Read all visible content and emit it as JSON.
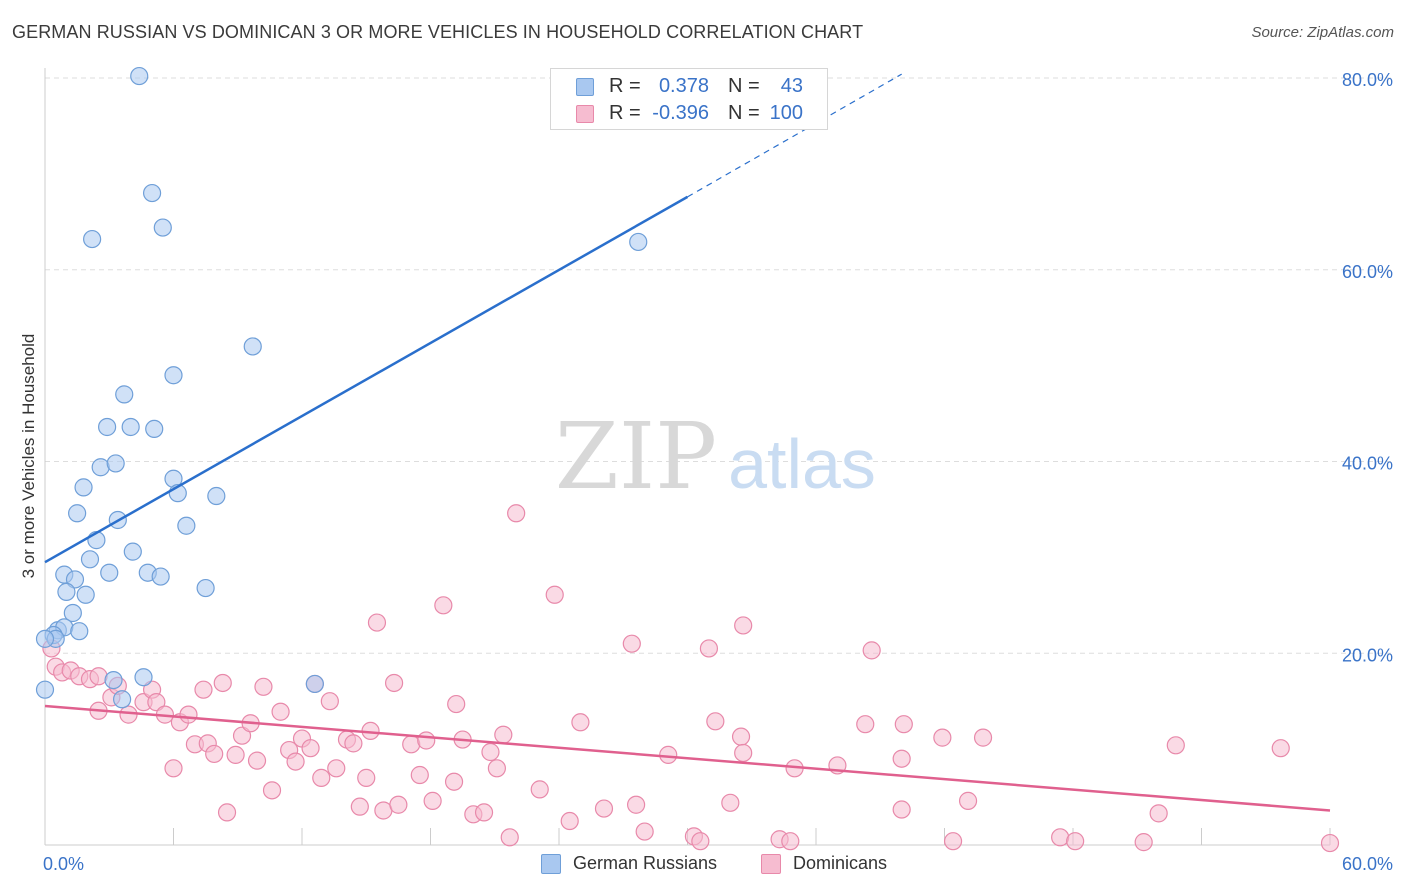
{
  "title": "GERMAN RUSSIAN VS DOMINICAN 3 OR MORE VEHICLES IN HOUSEHOLD CORRELATION CHART",
  "source": "Source: ZipAtlas.com",
  "watermark": {
    "zip": "ZIP",
    "atlas": "atlas"
  },
  "legend_top": [
    {
      "r_label": "R =",
      "r_value": "0.378",
      "n_label": "N =",
      "n_value": "43"
    },
    {
      "r_label": "R =",
      "r_value": "-0.396",
      "n_label": "N =",
      "n_value": "100"
    }
  ],
  "legend_bottom": [
    {
      "label": "German Russians"
    },
    {
      "label": "Dominicans"
    }
  ],
  "colors": {
    "blue_fill": "#a9c8f0",
    "blue_stroke": "#6f9fd8",
    "blue_line": "#2a6fcc",
    "pink_fill": "#f6bcd0",
    "pink_stroke": "#e889aa",
    "pink_line": "#e0608e",
    "axis_label": "#3a73c8",
    "grid": "#dddddd"
  },
  "chart_data": {
    "type": "scatter",
    "title": "GERMAN RUSSIAN VS DOMINICAN 3 OR MORE VEHICLES IN HOUSEHOLD CORRELATION CHART",
    "xlabel": "",
    "ylabel": "3 or more Vehicles in Household",
    "xlim": [
      0,
      60
    ],
    "ylim": [
      0,
      80
    ],
    "x_tick_labels": [
      "0.0%",
      "60.0%"
    ],
    "y_ticks": [
      20,
      40,
      60,
      80
    ],
    "y_tick_labels": [
      "20.0%",
      "40.0%",
      "60.0%",
      "80.0%"
    ],
    "grid": true,
    "legend_position": "top-center",
    "series": [
      {
        "name": "German Russians",
        "color": "#6f9fd8",
        "r": 0.378,
        "n": 43,
        "trend": {
          "x1": 0,
          "y1": 29.5,
          "x2": 30,
          "y2": 67.6,
          "dash_to_x": 40,
          "dash_to_y": 80.4
        },
        "points": [
          [
            4.4,
            80.2
          ],
          [
            5.0,
            68.0
          ],
          [
            2.2,
            63.2
          ],
          [
            5.5,
            64.4
          ],
          [
            27.7,
            62.9
          ],
          [
            9.7,
            52.0
          ],
          [
            6.0,
            49.0
          ],
          [
            3.7,
            47.0
          ],
          [
            2.9,
            43.6
          ],
          [
            4.0,
            43.6
          ],
          [
            5.1,
            43.4
          ],
          [
            2.6,
            39.4
          ],
          [
            3.3,
            39.8
          ],
          [
            1.8,
            37.3
          ],
          [
            6.0,
            38.2
          ],
          [
            6.2,
            36.7
          ],
          [
            8.0,
            36.4
          ],
          [
            1.5,
            34.6
          ],
          [
            3.4,
            33.9
          ],
          [
            6.6,
            33.3
          ],
          [
            2.4,
            31.8
          ],
          [
            4.1,
            30.6
          ],
          [
            2.1,
            29.8
          ],
          [
            0.9,
            28.2
          ],
          [
            1.4,
            27.7
          ],
          [
            3.0,
            28.4
          ],
          [
            4.8,
            28.4
          ],
          [
            5.4,
            28.0
          ],
          [
            7.5,
            26.8
          ],
          [
            1.0,
            26.4
          ],
          [
            1.9,
            26.1
          ],
          [
            1.3,
            24.2
          ],
          [
            0.6,
            22.4
          ],
          [
            0.9,
            22.7
          ],
          [
            1.6,
            22.3
          ],
          [
            0.4,
            21.9
          ],
          [
            0.5,
            21.5
          ],
          [
            3.2,
            17.2
          ],
          [
            4.6,
            17.5
          ],
          [
            12.6,
            16.8
          ],
          [
            3.6,
            15.2
          ],
          [
            0.0,
            16.2
          ],
          [
            0.0,
            21.5
          ]
        ]
      },
      {
        "name": "Dominicans",
        "color": "#e889aa",
        "r": -0.396,
        "n": 100,
        "trend": {
          "x1": 0,
          "y1": 14.5,
          "x2": 60,
          "y2": 3.6
        },
        "points": [
          [
            0.3,
            20.5
          ],
          [
            0.5,
            18.6
          ],
          [
            0.8,
            18.0
          ],
          [
            1.2,
            18.2
          ],
          [
            1.6,
            17.6
          ],
          [
            2.1,
            17.3
          ],
          [
            2.5,
            17.6
          ],
          [
            3.1,
            15.4
          ],
          [
            2.5,
            14.0
          ],
          [
            3.4,
            16.6
          ],
          [
            3.9,
            13.6
          ],
          [
            4.6,
            14.9
          ],
          [
            5.0,
            16.2
          ],
          [
            5.2,
            14.9
          ],
          [
            5.6,
            13.6
          ],
          [
            6.0,
            8.0
          ],
          [
            6.3,
            12.8
          ],
          [
            6.7,
            13.6
          ],
          [
            7.0,
            10.5
          ],
          [
            7.4,
            16.2
          ],
          [
            7.6,
            10.6
          ],
          [
            7.9,
            9.5
          ],
          [
            8.3,
            16.9
          ],
          [
            8.5,
            3.4
          ],
          [
            8.9,
            9.4
          ],
          [
            9.2,
            11.4
          ],
          [
            9.6,
            12.7
          ],
          [
            9.9,
            8.8
          ],
          [
            10.2,
            16.5
          ],
          [
            10.6,
            5.7
          ],
          [
            11.0,
            13.9
          ],
          [
            11.4,
            9.9
          ],
          [
            11.7,
            8.7
          ],
          [
            12.0,
            11.1
          ],
          [
            12.4,
            10.1
          ],
          [
            12.6,
            16.8
          ],
          [
            12.9,
            7.0
          ],
          [
            13.3,
            15.0
          ],
          [
            13.6,
            8.0
          ],
          [
            14.1,
            11.0
          ],
          [
            14.4,
            10.6
          ],
          [
            14.7,
            4.0
          ],
          [
            15.0,
            7.0
          ],
          [
            15.2,
            11.9
          ],
          [
            15.5,
            23.2
          ],
          [
            15.8,
            3.6
          ],
          [
            16.3,
            16.9
          ],
          [
            16.5,
            4.2
          ],
          [
            17.1,
            10.5
          ],
          [
            17.5,
            7.3
          ],
          [
            17.8,
            10.9
          ],
          [
            18.1,
            4.6
          ],
          [
            18.6,
            25.0
          ],
          [
            19.1,
            6.6
          ],
          [
            19.2,
            14.7
          ],
          [
            19.5,
            11.0
          ],
          [
            20.0,
            3.2
          ],
          [
            20.5,
            3.4
          ],
          [
            20.8,
            9.7
          ],
          [
            21.1,
            8.0
          ],
          [
            21.4,
            11.5
          ],
          [
            21.7,
            0.8
          ],
          [
            22.0,
            34.6
          ],
          [
            23.1,
            5.8
          ],
          [
            23.8,
            26.1
          ],
          [
            24.5,
            2.5
          ],
          [
            25.0,
            12.8
          ],
          [
            26.1,
            3.8
          ],
          [
            27.4,
            21.0
          ],
          [
            27.6,
            4.2
          ],
          [
            28.0,
            1.4
          ],
          [
            29.1,
            9.4
          ],
          [
            30.3,
            0.9
          ],
          [
            30.6,
            0.4
          ],
          [
            31.0,
            20.5
          ],
          [
            31.3,
            12.9
          ],
          [
            32.0,
            4.4
          ],
          [
            32.5,
            11.3
          ],
          [
            32.6,
            9.6
          ],
          [
            32.6,
            22.9
          ],
          [
            34.3,
            0.6
          ],
          [
            34.8,
            0.4
          ],
          [
            35.0,
            8.0
          ],
          [
            37.0,
            8.3
          ],
          [
            38.3,
            12.6
          ],
          [
            38.6,
            20.3
          ],
          [
            40.0,
            3.7
          ],
          [
            40.0,
            9.0
          ],
          [
            40.1,
            12.6
          ],
          [
            41.9,
            11.2
          ],
          [
            42.4,
            0.4
          ],
          [
            43.1,
            4.6
          ],
          [
            43.8,
            11.2
          ],
          [
            47.4,
            0.8
          ],
          [
            48.1,
            0.4
          ],
          [
            51.3,
            0.3
          ],
          [
            52.0,
            3.3
          ],
          [
            52.8,
            10.4
          ],
          [
            57.7,
            10.1
          ],
          [
            60.0,
            0.2
          ]
        ]
      }
    ]
  }
}
